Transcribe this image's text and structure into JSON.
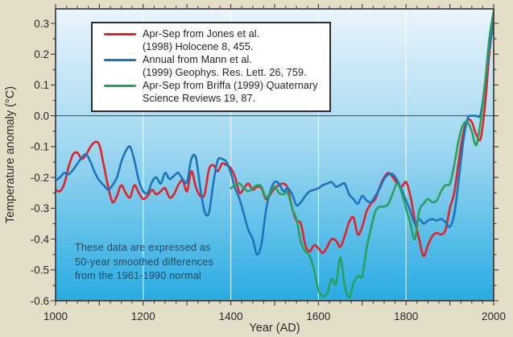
{
  "figure": {
    "background_color": "#e4ddc8",
    "plot_background_gradient": {
      "top": "#eaf4fb",
      "mid": "#9ed7f1",
      "bottom": "#29abe2"
    },
    "frame_color": "#3a3a3a",
    "gridline_color": "rgba(255,255,255,0.65)",
    "zero_line_color": "#44494b",
    "gridline_years": [
      1200,
      1400,
      1600,
      1800
    ]
  },
  "axes": {
    "x": {
      "label": "Year (AD)",
      "min": 1000,
      "max": 2000,
      "major_tick_step": 100,
      "minor_tick_step": 25,
      "label_step": 200,
      "tick_labels": [
        "1000",
        "1200",
        "1400",
        "1600",
        "1800",
        "2000"
      ]
    },
    "y": {
      "label": "Temperature anomaly (°C)",
      "min": -0.6,
      "max": 0.347,
      "major_tick_step": 0.1,
      "minor_tick_step": 0.05,
      "tick_labels": [
        "0.3",
        "0.2",
        "0.1",
        "0.0",
        "-0.1",
        "-0.2",
        "-0.3",
        "-0.4",
        "-0.5",
        "-0.6"
      ]
    }
  },
  "legend": {
    "entries": [
      {
        "line1": "Apr-Sep from Jones et al.",
        "line2": "(1998) Holocene 8, 455.",
        "color": "#e0232b"
      },
      {
        "line1": "Annual from Mann et al.",
        "line2": "(1999) Geophys. Res. Lett. 26, 759.",
        "color": "#1e74bb"
      },
      {
        "line1": "Apr-Sep from Briffa (1999) Quaternary",
        "line2": "Science Reviews 19, 87.",
        "color": "#2aa05e"
      }
    ]
  },
  "annotation": {
    "lines": [
      "These data are expressed as",
      "50-year smoothed differences",
      "from the 1961-1990 normal"
    ],
    "color": "#1e4a5f"
  },
  "chart_data": {
    "type": "line",
    "title": "",
    "xlabel": "Year (AD)",
    "ylabel": "Temperature anomaly (°C)",
    "xlim": [
      1000,
      2000
    ],
    "ylim": [
      -0.6,
      0.347
    ],
    "grid": "vertical-white-every-200yr",
    "legend_position": "top-left-inside",
    "zero_reference_line": 0.0,
    "series": [
      {
        "name": "Apr-Sep from Jones et al. (1998) Holocene 8, 455.",
        "color": "#e0232b",
        "x_start": 1000,
        "x_step": 10,
        "values": [
          -0.24,
          -0.245,
          -0.22,
          -0.165,
          -0.125,
          -0.12,
          -0.14,
          -0.125,
          -0.1,
          -0.085,
          -0.095,
          -0.16,
          -0.23,
          -0.28,
          -0.26,
          -0.225,
          -0.25,
          -0.265,
          -0.225,
          -0.25,
          -0.27,
          -0.26,
          -0.24,
          -0.255,
          -0.245,
          -0.235,
          -0.265,
          -0.255,
          -0.225,
          -0.21,
          -0.245,
          -0.18,
          -0.23,
          -0.26,
          -0.255,
          -0.175,
          -0.16,
          -0.18,
          -0.155,
          -0.16,
          -0.17,
          -0.2,
          -0.25,
          -0.235,
          -0.22,
          -0.24,
          -0.23,
          -0.235,
          -0.27,
          -0.255,
          -0.235,
          -0.225,
          -0.22,
          -0.235,
          -0.3,
          -0.34,
          -0.35,
          -0.42,
          -0.44,
          -0.42,
          -0.43,
          -0.445,
          -0.425,
          -0.4,
          -0.405,
          -0.425,
          -0.39,
          -0.345,
          -0.33,
          -0.385,
          -0.36,
          -0.31,
          -0.285,
          -0.27,
          -0.23,
          -0.2,
          -0.185,
          -0.2,
          -0.22,
          -0.23,
          -0.215,
          -0.26,
          -0.34,
          -0.4,
          -0.455,
          -0.42,
          -0.39,
          -0.38,
          -0.385,
          -0.37,
          -0.3,
          -0.25,
          -0.15,
          -0.06,
          -0.015,
          -0.02,
          -0.06,
          -0.075,
          0.03,
          0.2,
          0.32
        ]
      },
      {
        "name": "Annual from Mann et al. (1999) Geophys. Res. Lett. 26, 759.",
        "color": "#1e74bb",
        "x_start": 1000,
        "x_step": 10,
        "values": [
          -0.21,
          -0.2,
          -0.185,
          -0.19,
          -0.175,
          -0.155,
          -0.135,
          -0.125,
          -0.15,
          -0.185,
          -0.21,
          -0.225,
          -0.24,
          -0.225,
          -0.2,
          -0.15,
          -0.115,
          -0.1,
          -0.145,
          -0.21,
          -0.245,
          -0.25,
          -0.215,
          -0.2,
          -0.22,
          -0.185,
          -0.205,
          -0.195,
          -0.185,
          -0.205,
          -0.215,
          -0.14,
          -0.135,
          -0.23,
          -0.31,
          -0.315,
          -0.22,
          -0.145,
          -0.14,
          -0.15,
          -0.185,
          -0.235,
          -0.27,
          -0.32,
          -0.37,
          -0.4,
          -0.45,
          -0.415,
          -0.31,
          -0.245,
          -0.215,
          -0.22,
          -0.245,
          -0.235,
          -0.255,
          -0.29,
          -0.28,
          -0.26,
          -0.245,
          -0.24,
          -0.235,
          -0.225,
          -0.22,
          -0.215,
          -0.23,
          -0.225,
          -0.22,
          -0.255,
          -0.27,
          -0.285,
          -0.26,
          -0.275,
          -0.28,
          -0.26,
          -0.235,
          -0.205,
          -0.19,
          -0.19,
          -0.21,
          -0.24,
          -0.275,
          -0.31,
          -0.35,
          -0.335,
          -0.35,
          -0.34,
          -0.335,
          -0.34,
          -0.335,
          -0.345,
          -0.36,
          -0.32,
          -0.21,
          -0.09,
          -0.01,
          0.0,
          0.0,
          0.005,
          0.1,
          0.22,
          0.3
        ]
      },
      {
        "name": "Apr-Sep from Briffa (1999) Quaternary Science Reviews 19, 87.",
        "color": "#2aa05e",
        "x_start": 1400,
        "x_step": 10,
        "values": [
          -0.235,
          -0.225,
          -0.22,
          -0.235,
          -0.245,
          -0.235,
          -0.225,
          -0.23,
          -0.265,
          -0.25,
          -0.23,
          -0.25,
          -0.255,
          -0.25,
          -0.3,
          -0.335,
          -0.41,
          -0.44,
          -0.455,
          -0.5,
          -0.565,
          -0.585,
          -0.575,
          -0.53,
          -0.545,
          -0.46,
          -0.55,
          -0.59,
          -0.545,
          -0.52,
          -0.52,
          -0.43,
          -0.365,
          -0.31,
          -0.295,
          -0.295,
          -0.285,
          -0.25,
          -0.22,
          -0.25,
          -0.3,
          -0.35,
          -0.4,
          -0.31,
          -0.285,
          -0.27,
          -0.28,
          -0.275,
          -0.245,
          -0.225,
          -0.22,
          -0.16,
          -0.08,
          -0.03,
          -0.02,
          -0.05,
          -0.095,
          -0.02,
          0.1,
          0.25,
          0.34
        ]
      }
    ]
  }
}
